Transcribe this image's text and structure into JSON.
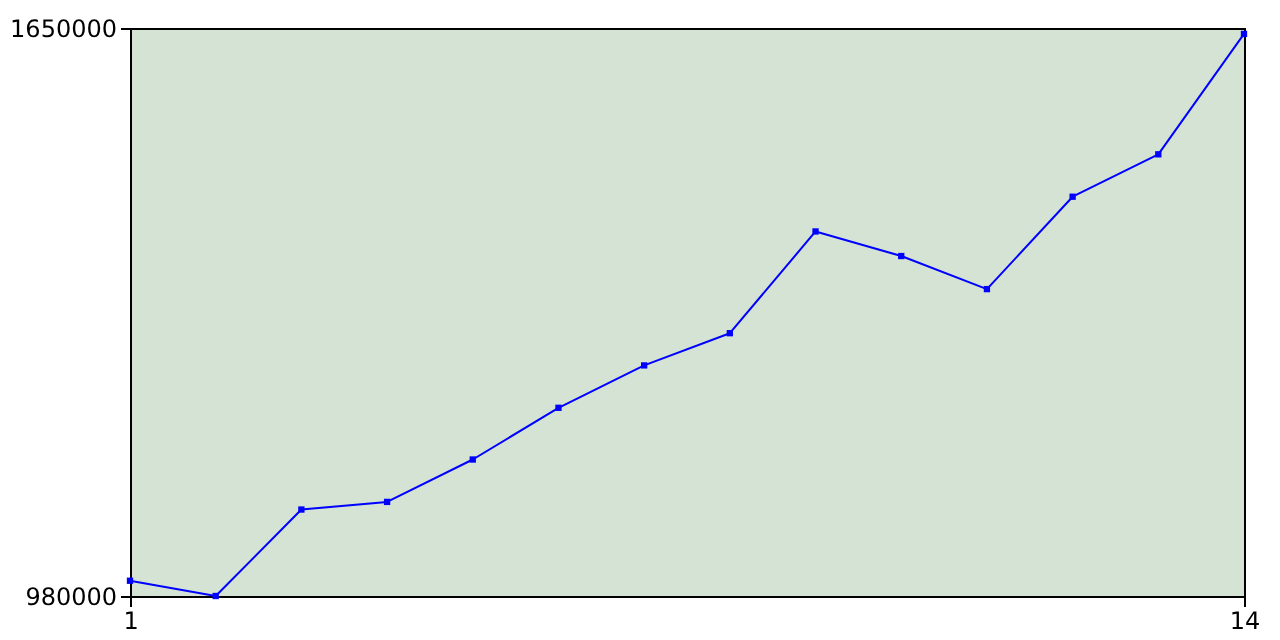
{
  "chart_data": {
    "type": "line",
    "x": [
      1,
      2,
      3,
      4,
      5,
      6,
      7,
      8,
      9,
      10,
      11,
      12,
      13,
      14
    ],
    "series": [
      {
        "color": "#0000ff",
        "values": [
          998000,
          980000,
          1082000,
          1091000,
          1141000,
          1202000,
          1252000,
          1290000,
          1410000,
          1381000,
          1342000,
          1451000,
          1501000,
          1643000
        ]
      }
    ],
    "xlim": [
      1,
      14
    ],
    "xticks": [
      1,
      14
    ],
    "ylim": [
      980000,
      1650000
    ],
    "yticks": [
      980000,
      1650000
    ],
    "grid": false,
    "marker": "square",
    "line_style": "solid"
  }
}
